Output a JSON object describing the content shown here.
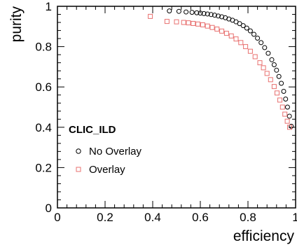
{
  "chart_data": {
    "type": "scatter",
    "xlabel": "efficiency",
    "ylabel": "purity",
    "xlim": [
      0,
      1
    ],
    "ylim": [
      0,
      1
    ],
    "x_ticks": [
      "0",
      "0.2",
      "0.4",
      "0.6",
      "0.8",
      "1"
    ],
    "y_ticks": [
      "0",
      "0.2",
      "0.4",
      "0.6",
      "0.8",
      "1"
    ],
    "legend": {
      "title": "CLIC_ILD",
      "placement": "middle-left"
    },
    "grid": false,
    "series": [
      {
        "name": "No Overlay",
        "marker": "circle",
        "color": "#000000",
        "points": [
          [
            0.47,
            0.977
          ],
          [
            0.51,
            0.975
          ],
          [
            0.54,
            0.972
          ],
          [
            0.565,
            0.97
          ],
          [
            0.585,
            0.968
          ],
          [
            0.6,
            0.966
          ],
          [
            0.615,
            0.964
          ],
          [
            0.63,
            0.962
          ],
          [
            0.645,
            0.959
          ],
          [
            0.66,
            0.956
          ],
          [
            0.675,
            0.952
          ],
          [
            0.69,
            0.948
          ],
          [
            0.705,
            0.943
          ],
          [
            0.72,
            0.937
          ],
          [
            0.735,
            0.931
          ],
          [
            0.75,
            0.923
          ],
          [
            0.765,
            0.914
          ],
          [
            0.78,
            0.904
          ],
          [
            0.795,
            0.892
          ],
          [
            0.81,
            0.878
          ],
          [
            0.825,
            0.861
          ],
          [
            0.84,
            0.842
          ],
          [
            0.855,
            0.82
          ],
          [
            0.87,
            0.795
          ],
          [
            0.885,
            0.767
          ],
          [
            0.9,
            0.735
          ],
          [
            0.91,
            0.71
          ],
          [
            0.92,
            0.683
          ],
          [
            0.93,
            0.652
          ],
          [
            0.94,
            0.618
          ],
          [
            0.95,
            0.578
          ],
          [
            0.958,
            0.54
          ],
          [
            0.966,
            0.5
          ],
          [
            0.974,
            0.455
          ],
          [
            0.982,
            0.405
          ]
        ]
      },
      {
        "name": "Overlay",
        "marker": "square",
        "color": "#e8706f",
        "points": [
          [
            0.39,
            0.95
          ],
          [
            0.46,
            0.925
          ],
          [
            0.5,
            0.923
          ],
          [
            0.53,
            0.92
          ],
          [
            0.55,
            0.918
          ],
          [
            0.57,
            0.915
          ],
          [
            0.59,
            0.912
          ],
          [
            0.61,
            0.908
          ],
          [
            0.63,
            0.902
          ],
          [
            0.65,
            0.895
          ],
          [
            0.67,
            0.887
          ],
          [
            0.69,
            0.877
          ],
          [
            0.71,
            0.866
          ],
          [
            0.73,
            0.853
          ],
          [
            0.75,
            0.838
          ],
          [
            0.77,
            0.82
          ],
          [
            0.79,
            0.8
          ],
          [
            0.81,
            0.777
          ],
          [
            0.83,
            0.75
          ],
          [
            0.85,
            0.72
          ],
          [
            0.865,
            0.695
          ],
          [
            0.88,
            0.667
          ],
          [
            0.895,
            0.636
          ],
          [
            0.91,
            0.602
          ],
          [
            0.922,
            0.57
          ],
          [
            0.934,
            0.535
          ],
          [
            0.945,
            0.5
          ],
          [
            0.955,
            0.465
          ],
          [
            0.965,
            0.43
          ],
          [
            0.975,
            0.4
          ]
        ]
      }
    ]
  }
}
